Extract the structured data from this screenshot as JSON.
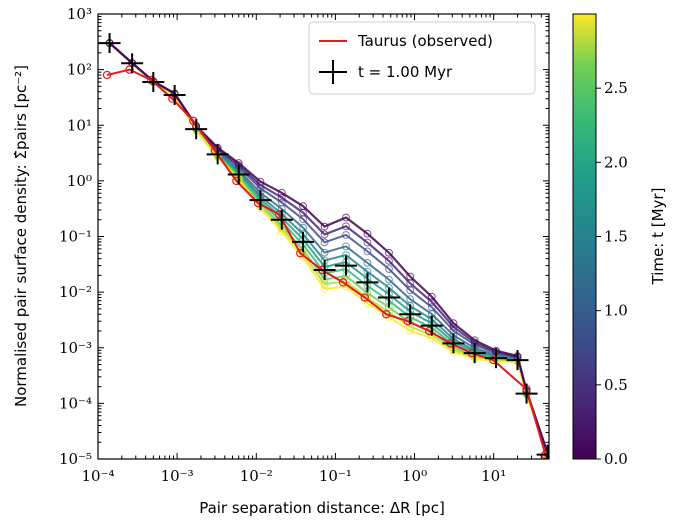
{
  "chart_data": {
    "type": "line",
    "xlabel": "Pair separation distance: ΔR [pc]",
    "ylabel": "Normalised pair surface density: Σ̂pairs [pc⁻²]",
    "xscale": "log",
    "yscale": "log",
    "xlim": [
      0.0001,
      50
    ],
    "ylim": [
      1e-05,
      1000
    ],
    "x_ticks": [
      "10⁻⁴",
      "10⁻³",
      "10⁻²",
      "10⁻¹",
      "10⁰",
      "10¹"
    ],
    "y_ticks": [
      "10⁻⁵",
      "10⁻⁴",
      "10⁻³",
      "10⁻²",
      "10⁻¹",
      "10⁰",
      "10¹",
      "10²",
      "10³"
    ],
    "legend_position": "top-right",
    "colorbar": {
      "label": "Time: t [Myr]",
      "colormap": "viridis",
      "range": [
        0.0,
        3.0
      ],
      "ticks": [
        "0.0",
        "0.5",
        "1.0",
        "1.5",
        "2.0",
        "2.5"
      ]
    },
    "series": [
      {
        "name": "Taurus (observed)",
        "color": "#e41a1c",
        "x": [
          0.00013,
          0.00025,
          0.00047,
          0.00087,
          0.0016,
          0.003,
          0.0056,
          0.0105,
          0.0195,
          0.036,
          0.068,
          0.125,
          0.235,
          0.44,
          0.82,
          1.53,
          2.85,
          5.3,
          9.9,
          26,
          45
        ],
        "y": [
          80,
          100,
          65,
          30,
          12,
          3.5,
          1.0,
          0.4,
          0.25,
          0.05,
          0.025,
          0.015,
          0.008,
          0.004,
          0.003,
          0.002,
          0.0012,
          0.0008,
          0.0006,
          0.00018,
          1.2e-05
        ]
      },
      {
        "name": "t = 1.00 Myr",
        "color": "#000000",
        "x": [
          0.00014,
          0.00027,
          0.0005,
          0.00093,
          0.00174,
          0.00325,
          0.006,
          0.0113,
          0.021,
          0.039,
          0.073,
          0.136,
          0.254,
          0.475,
          0.88,
          1.65,
          3.1,
          5.75,
          10.7,
          20,
          26,
          48
        ],
        "y": [
          300,
          130,
          60,
          35,
          8.5,
          3.0,
          1.3,
          0.45,
          0.2,
          0.08,
          0.025,
          0.03,
          0.015,
          0.008,
          0.004,
          0.0025,
          0.0012,
          0.0008,
          0.00065,
          0.0006,
          0.00015,
          1.2e-05
        ]
      }
    ]
  },
  "colors": {
    "taurus": "#e41a1c",
    "marker": "#000000"
  }
}
